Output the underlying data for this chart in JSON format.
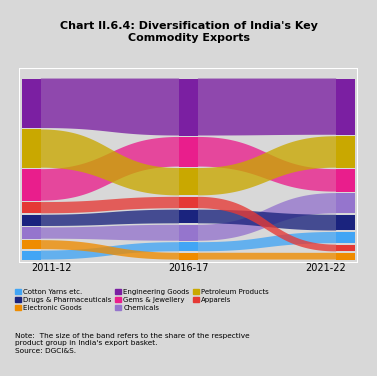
{
  "title": "Chart II.6.4: Diversification of India's Key\nCommodity Exports",
  "years": [
    "2011-12",
    "2016-17",
    "2021-22"
  ],
  "background_color": "#d8d8d8",
  "plot_bg": "#ffffff",
  "orders": [
    [
      [
        "Engineering Goods",
        0.22
      ],
      [
        "Petroleum Products",
        0.17
      ],
      [
        "Gems & Jewellery",
        0.14
      ],
      [
        "Apparels",
        0.05
      ],
      [
        "Drugs & Pharmaceuticals",
        0.05
      ],
      [
        "Chemicals",
        0.05
      ],
      [
        "Electronic Goods",
        0.04
      ],
      [
        "Cotton Yarns etc.",
        0.04
      ]
    ],
    [
      [
        "Engineering Goods",
        0.25
      ],
      [
        "Gems & Jewellery",
        0.13
      ],
      [
        "Petroleum Products",
        0.12
      ],
      [
        "Apparels",
        0.05
      ],
      [
        "Drugs & Pharmaceuticals",
        0.06
      ],
      [
        "Chemicals",
        0.07
      ],
      [
        "Cotton Yarns etc.",
        0.04
      ],
      [
        "Electronic Goods",
        0.03
      ]
    ],
    [
      [
        "Engineering Goods",
        0.25
      ],
      [
        "Petroleum Products",
        0.14
      ],
      [
        "Gems & Jewellery",
        0.1
      ],
      [
        "Chemicals",
        0.09
      ],
      [
        "Drugs & Pharmaceuticals",
        0.07
      ],
      [
        "Cotton Yarns etc.",
        0.05
      ],
      [
        "Apparels",
        0.03
      ],
      [
        "Electronic Goods",
        0.03
      ]
    ]
  ],
  "color_map": {
    "Engineering Goods": "#7b1fa2",
    "Gems & Jewellery": "#e91e8c",
    "Petroleum Products": "#c9a800",
    "Chemicals": "#9575cd",
    "Drugs & Pharmaceuticals": "#1a237e",
    "Cotton Yarns etc.": "#42a5f5",
    "Electronic Goods": "#ef8c00",
    "Apparels": "#e53935"
  },
  "legend_items": [
    {
      "label": "Cotton Yarns etc.",
      "color": "#42a5f5"
    },
    {
      "label": "Drugs & Pharmaceuticals",
      "color": "#1a237e"
    },
    {
      "label": "Electronic Goods",
      "color": "#ef8c00"
    },
    {
      "label": "Engineering Goods",
      "color": "#7b1fa2"
    },
    {
      "label": "Gems & Jewellery",
      "color": "#e91e8c"
    },
    {
      "label": "Chemicals",
      "color": "#9575cd"
    },
    {
      "label": "Petroleum Products",
      "color": "#c9a800"
    },
    {
      "label": "Apparels",
      "color": "#e53935"
    }
  ],
  "note_text": "Note:  The size of the band refers to the share of the respective\nproduct group in India's export basket.\nSource: DGCI&S."
}
